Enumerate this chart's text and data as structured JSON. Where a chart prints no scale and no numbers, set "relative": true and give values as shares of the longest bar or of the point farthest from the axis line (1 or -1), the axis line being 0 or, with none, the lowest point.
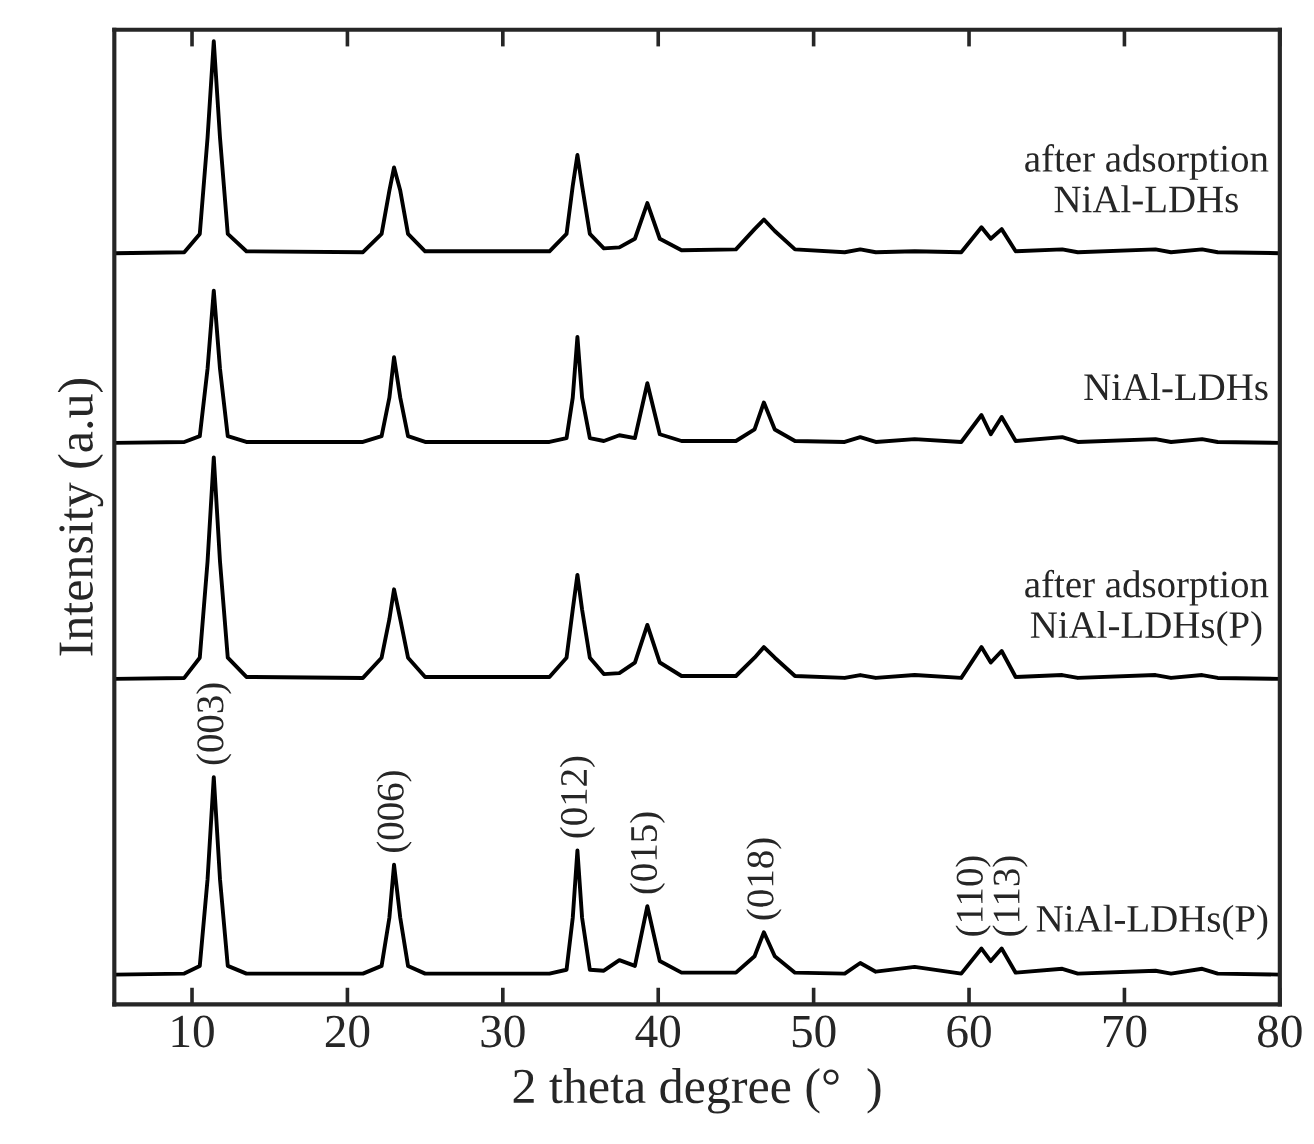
{
  "chart_data": {
    "type": "line",
    "relative": true,
    "xlabel": "2 theta degree (°  )",
    "ylabel": "Intensity (a.u)",
    "xlim": [
      5,
      80
    ],
    "xticks": [
      10,
      20,
      30,
      40,
      50,
      60,
      70,
      80
    ],
    "tick_labels": "x",
    "grid": false,
    "marker": "none",
    "line_style": "solid",
    "x": [
      5,
      9.5,
      10.5,
      11.0,
      11.4,
      11.8,
      12.3,
      13.5,
      21,
      22.2,
      22.7,
      23.0,
      23.4,
      23.9,
      25,
      33,
      34.1,
      34.5,
      34.8,
      35.1,
      35.6,
      36.5,
      37.5,
      38.5,
      39.3,
      40.1,
      41.5,
      45,
      46.2,
      46.8,
      47.5,
      48.8,
      52,
      53,
      54,
      56.5,
      59.5,
      60.8,
      61.4,
      62.1,
      63,
      66,
      67,
      72,
      73,
      75,
      76,
      80
    ],
    "series": [
      {
        "name": "after adsorption\nNiAl-LDHs",
        "color": "#000000",
        "values": [
          0.78,
          0.781,
          0.8,
          0.9,
          1.0,
          0.9,
          0.8,
          0.782,
          0.781,
          0.8,
          0.845,
          0.869,
          0.845,
          0.8,
          0.782,
          0.782,
          0.8,
          0.85,
          0.882,
          0.85,
          0.8,
          0.785,
          0.786,
          0.795,
          0.832,
          0.795,
          0.783,
          0.784,
          0.805,
          0.815,
          0.803,
          0.784,
          0.781,
          0.784,
          0.781,
          0.782,
          0.781,
          0.807,
          0.795,
          0.805,
          0.782,
          0.784,
          0.781,
          0.784,
          0.781,
          0.784,
          0.781,
          0.78
        ]
      },
      {
        "name": "NiAl-LDHs",
        "color": "#000000",
        "values": [
          0.583,
          0.584,
          0.59,
          0.66,
          0.741,
          0.66,
          0.59,
          0.584,
          0.584,
          0.59,
          0.63,
          0.672,
          0.63,
          0.59,
          0.584,
          0.584,
          0.588,
          0.63,
          0.693,
          0.63,
          0.588,
          0.585,
          0.591,
          0.588,
          0.645,
          0.592,
          0.585,
          0.585,
          0.597,
          0.625,
          0.597,
          0.585,
          0.584,
          0.589,
          0.584,
          0.587,
          0.584,
          0.612,
          0.592,
          0.61,
          0.585,
          0.589,
          0.584,
          0.587,
          0.584,
          0.587,
          0.584,
          0.583
        ]
      },
      {
        "name": "after adsorption\nNiAl-LDHs(P)",
        "color": "#000000",
        "values": [
          0.338,
          0.339,
          0.36,
          0.46,
          0.568,
          0.46,
          0.36,
          0.34,
          0.339,
          0.36,
          0.4,
          0.431,
          0.4,
          0.36,
          0.34,
          0.34,
          0.36,
          0.41,
          0.446,
          0.41,
          0.36,
          0.343,
          0.344,
          0.355,
          0.394,
          0.355,
          0.341,
          0.341,
          0.36,
          0.371,
          0.36,
          0.341,
          0.339,
          0.342,
          0.339,
          0.342,
          0.339,
          0.371,
          0.355,
          0.367,
          0.34,
          0.342,
          0.339,
          0.342,
          0.339,
          0.342,
          0.339,
          0.338
        ]
      },
      {
        "name": "NiAl-LDHs(P)",
        "color": "#000000",
        "values": [
          0.031,
          0.032,
          0.04,
          0.13,
          0.236,
          0.13,
          0.04,
          0.032,
          0.032,
          0.04,
          0.09,
          0.145,
          0.09,
          0.04,
          0.032,
          0.032,
          0.036,
          0.09,
          0.16,
          0.09,
          0.036,
          0.035,
          0.046,
          0.04,
          0.102,
          0.045,
          0.033,
          0.033,
          0.05,
          0.075,
          0.05,
          0.033,
          0.032,
          0.043,
          0.034,
          0.039,
          0.032,
          0.058,
          0.045,
          0.058,
          0.033,
          0.037,
          0.032,
          0.035,
          0.032,
          0.037,
          0.032,
          0.031
        ]
      }
    ],
    "annotations": [
      {
        "text": "(003)",
        "x": 11.4,
        "y": 0.236
      },
      {
        "text": "(006)",
        "x": 23.0,
        "y": 0.145
      },
      {
        "text": "(012)",
        "x": 34.8,
        "y": 0.16
      },
      {
        "text": "(015)",
        "x": 39.3,
        "y": 0.102
      },
      {
        "text": "(018)",
        "x": 46.8,
        "y": 0.075
      },
      {
        "text": "(110)",
        "x": 60.8,
        "y": 0.058
      },
      {
        "text": "(113)",
        "x": 62.1,
        "y": 0.058
      }
    ]
  }
}
